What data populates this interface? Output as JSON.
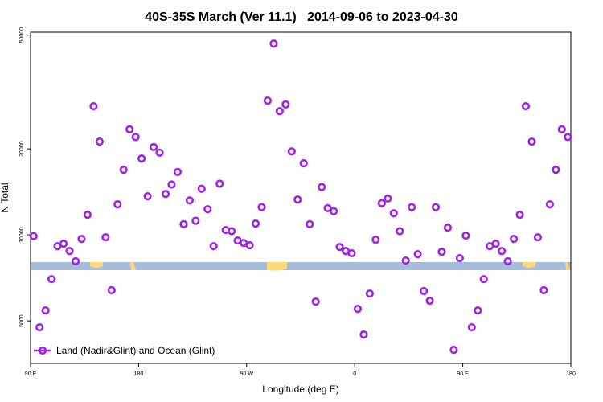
{
  "chart_data": {
    "type": "scatter",
    "title": "40S-35S March (Ver 11.1)   2014-09-06 to 2023-04-30",
    "xlabel": "Longitude (deg E)",
    "ylabel": "N Total",
    "yscale": "log",
    "legend": "bottom-left",
    "xlim": [
      90,
      540
    ],
    "xticks": [
      {
        "value": 90,
        "label": "90 E"
      },
      180,
      {
        "value": 270,
        "label": "90 W"
      },
      {
        "value": 360,
        "label": "0"
      },
      {
        "value": 450,
        "label": "90 E"
      },
      {
        "value": 540,
        "label": "180"
      }
    ],
    "ylim": [
      3550,
      51200
    ],
    "yticks": [
      5000,
      10000,
      20000,
      50000
    ],
    "x": [
      92.5,
      97.5,
      102.5,
      107.5,
      112.5,
      117.5,
      122.5,
      127.5,
      132.5,
      137.5,
      142.5,
      147.5,
      152.5,
      157.5,
      162.5,
      167.5,
      172.5,
      177.5,
      182.5,
      187.5,
      192.5,
      197.5,
      202.5,
      207.5,
      212.5,
      217.5,
      222.5,
      227.5,
      232.5,
      237.5,
      242.5,
      247.5,
      252.5,
      257.5,
      262.5,
      267.5,
      272.5,
      277.5,
      282.5,
      287.5,
      292.5,
      297.5,
      302.5,
      307.5,
      312.5,
      317.5,
      322.5,
      327.5,
      332.5,
      337.5,
      342.5,
      347.5,
      352.5,
      357.5,
      362.5,
      367.5,
      372.5,
      377.5,
      382.5,
      387.5,
      392.5,
      397.5,
      402.5,
      407.5,
      412.5,
      417.5,
      422.5,
      427.5,
      432.5,
      437.5,
      442.5,
      447.5,
      452.5,
      457.5,
      462.5,
      467.5,
      472.5,
      477.5,
      482.5,
      487.5,
      492.5,
      497.5,
      502.5,
      507.5,
      512.5,
      517.5,
      522.5,
      527.5,
      532.5,
      537.5
    ],
    "series": [
      {
        "name": "Land (Nadir&Glint) and Ocean (Glint)",
        "color": "#a020f0",
        "values": [
          9900,
          4750,
          5440,
          7000,
          9130,
          9310,
          8780,
          8080,
          9680,
          11760,
          28200,
          21200,
          9810,
          6400,
          12790,
          16900,
          23400,
          22000,
          18500,
          13650,
          20300,
          19400,
          13900,
          15000,
          16600,
          10900,
          13200,
          11200,
          14500,
          12300,
          9130,
          15100,
          10400,
          10300,
          9560,
          9370,
          9190,
          10950,
          12500,
          29500,
          46700,
          27100,
          28600,
          19600,
          13300,
          17800,
          10900,
          5840,
          14700,
          12400,
          12100,
          9070,
          8780,
          8620,
          5510,
          4480,
          6230,
          9620,
          12900,
          13400,
          11900,
          10300,
          8130,
          12500,
          8560,
          6360,
          5880,
          12500,
          8730,
          10600,
          3960,
          8290,
          9940,
          4750,
          5440,
          7000,
          9130,
          9310,
          8780,
          8080,
          9680,
          11760,
          28200,
          21200,
          9810,
          6400,
          12790,
          16900,
          23400,
          22000
        ]
      }
    ]
  }
}
